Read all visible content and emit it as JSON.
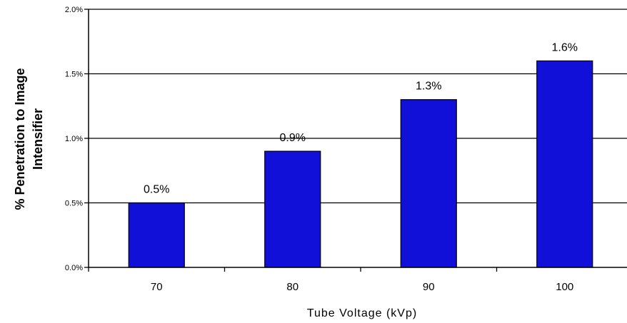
{
  "chart_data": {
    "type": "bar",
    "title": "",
    "xlabel": "Tube Voltage (kVp)",
    "ylabel_lines": [
      "% Penetration to Image",
      "Intensifier"
    ],
    "categories": [
      "70",
      "80",
      "90",
      "100"
    ],
    "values": [
      0.5,
      0.9,
      1.3,
      1.6
    ],
    "data_labels": [
      "0.5%",
      "0.9%",
      "1.3%",
      "1.6%"
    ],
    "ylim": [
      0,
      2.0
    ],
    "yticks": [
      0.0,
      0.5,
      1.0,
      1.5,
      2.0
    ],
    "ytick_labels": [
      "0.0%",
      "0.5%",
      "1.0%",
      "1.5%",
      "2.0%"
    ],
    "grid": true,
    "legend": "none",
    "bar_color": "#1010d8",
    "bar_edge_color": "#000000"
  }
}
